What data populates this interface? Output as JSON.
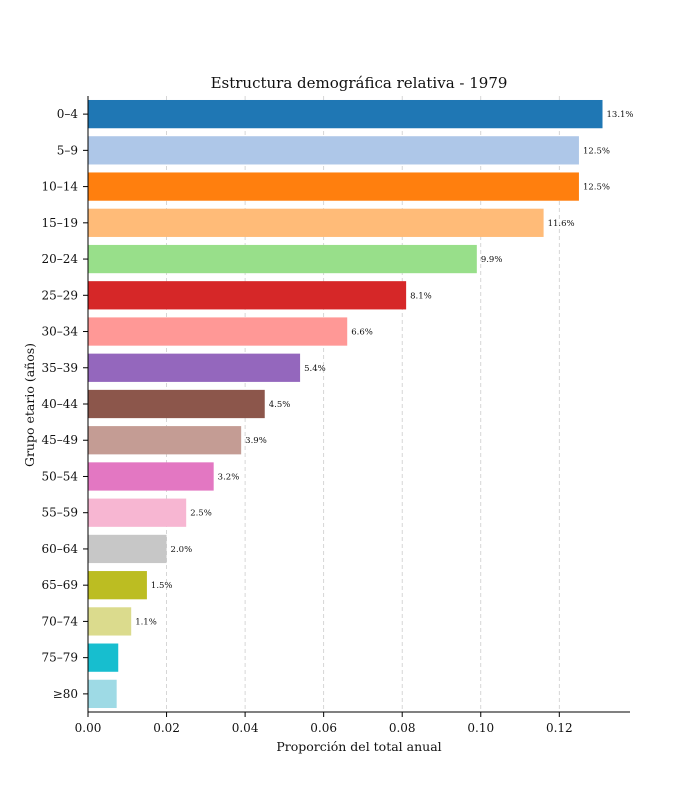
{
  "chart_data": {
    "type": "bar",
    "orientation": "horizontal",
    "title": "Estructura demográfica relativa - 1979",
    "xlabel": "Proporción del total anual",
    "ylabel": "Grupo etario (años)",
    "xlim": [
      0,
      0.138
    ],
    "xticks": [
      "0.00",
      "0.02",
      "0.04",
      "0.06",
      "0.08",
      "0.10",
      "0.12"
    ],
    "xtick_values": [
      0,
      0.02,
      0.04,
      0.06,
      0.08,
      0.1,
      0.12
    ],
    "grid": "vertical-dashed",
    "categories": [
      "0–4",
      "5–9",
      "10–14",
      "15–19",
      "20–24",
      "25–29",
      "30–34",
      "35–39",
      "40–44",
      "45–49",
      "50–54",
      "55–59",
      "60–64",
      "65–69",
      "70–74",
      "75–79",
      "≥80"
    ],
    "values": [
      0.131,
      0.125,
      0.125,
      0.116,
      0.099,
      0.081,
      0.066,
      0.054,
      0.045,
      0.039,
      0.032,
      0.025,
      0.02,
      0.015,
      0.011,
      0.0077,
      0.0073
    ],
    "data_labels": [
      "13.1%",
      "12.5%",
      "12.5%",
      "11.6%",
      "9.9%",
      "8.1%",
      "6.6%",
      "5.4%",
      "4.5%",
      "3.9%",
      "3.2%",
      "2.5%",
      "2.0%",
      "1.5%",
      "1.1%",
      "",
      ""
    ],
    "colors": [
      "#1f77b4",
      "#aec7e8",
      "#ff7f0e",
      "#ffbb78",
      "#98df8a",
      "#d62728",
      "#ff9896",
      "#9467bd",
      "#8c564b",
      "#c49c94",
      "#e377c2",
      "#f7b6d2",
      "#c7c7c7",
      "#bcbd22",
      "#dbdb8d",
      "#17becf",
      "#9edae5"
    ]
  }
}
